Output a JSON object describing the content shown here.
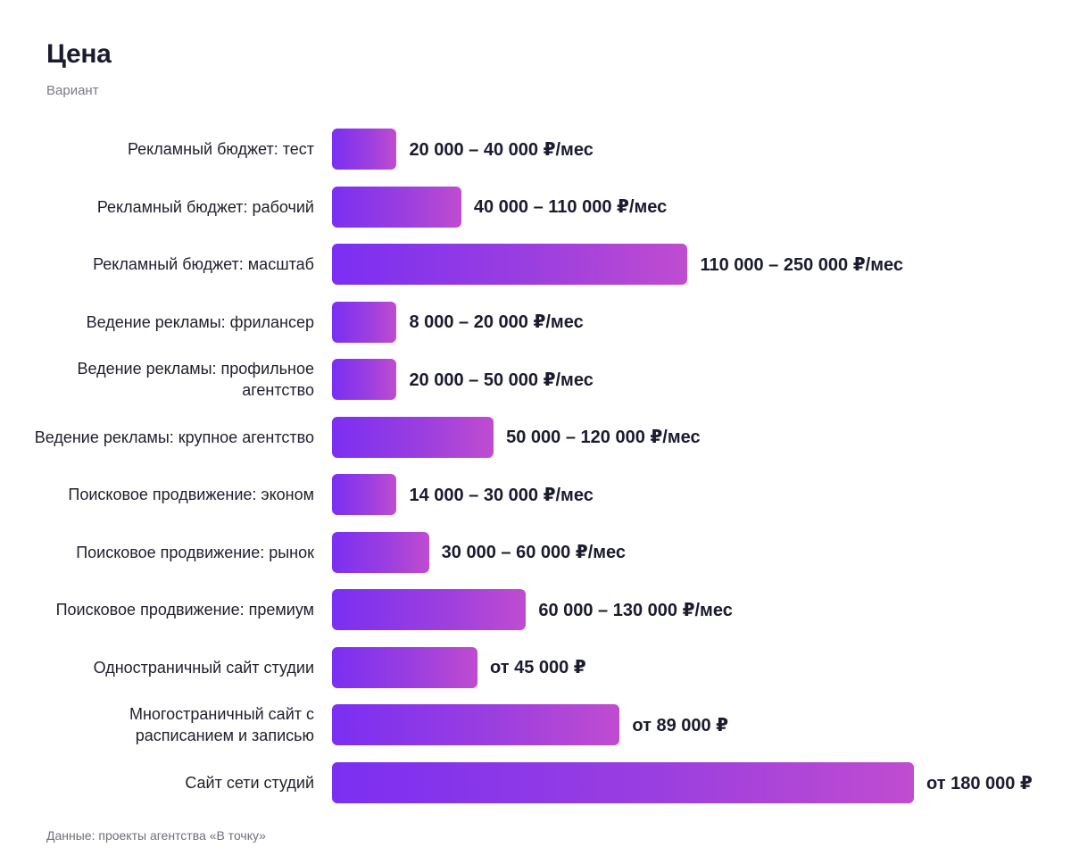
{
  "header": {
    "title": "Цена",
    "subtitle": "Вариант"
  },
  "footer": {
    "source": "Данные: проекты агентства «В точку»"
  },
  "colors": {
    "bar_start": "#7b2ff2",
    "bar_end": "#c04cd0",
    "text": "#1b1b2f"
  },
  "chart_data": {
    "type": "bar",
    "orientation": "horizontal",
    "title": "Цена",
    "subtitle": "Вариант",
    "grid": false,
    "legend": "none",
    "xlim": [
      0,
      180000
    ],
    "categories": [
      "Рекламный бюджет: тест",
      "Рекламный бюджет: рабочий",
      "Рекламный бюджет: масштаб",
      "Ведение рекламы: фрилансер",
      "Ведение рекламы: профильное агентство",
      "Ведение рекламы: крупное агентство",
      "Поисковое продвижение: эконом",
      "Поисковое продвижение: рынок",
      "Поисковое продвижение: премиум",
      "Одностраничный сайт студии",
      "Многостраничный сайт с расписанием и записью",
      "Сайт сети студий"
    ],
    "values": [
      20000,
      40000,
      110000,
      20000,
      20000,
      50000,
      20000,
      30000,
      60000,
      45000,
      89000,
      180000
    ],
    "data_labels": [
      "20 000 – 40 000 ₽/мес",
      "40 000 – 110 000 ₽/мес",
      "110 000 – 250 000 ₽/мес",
      "8 000 – 20 000 ₽/мес",
      "20 000 – 50 000 ₽/мес",
      "50 000 – 120 000 ₽/мес",
      "14 000 – 30 000 ₽/мес",
      "30 000 – 60 000 ₽/мес",
      "60 000 – 130 000 ₽/мес",
      "от 45 000 ₽",
      "от 89 000 ₽",
      "от 180 000 ₽"
    ]
  }
}
